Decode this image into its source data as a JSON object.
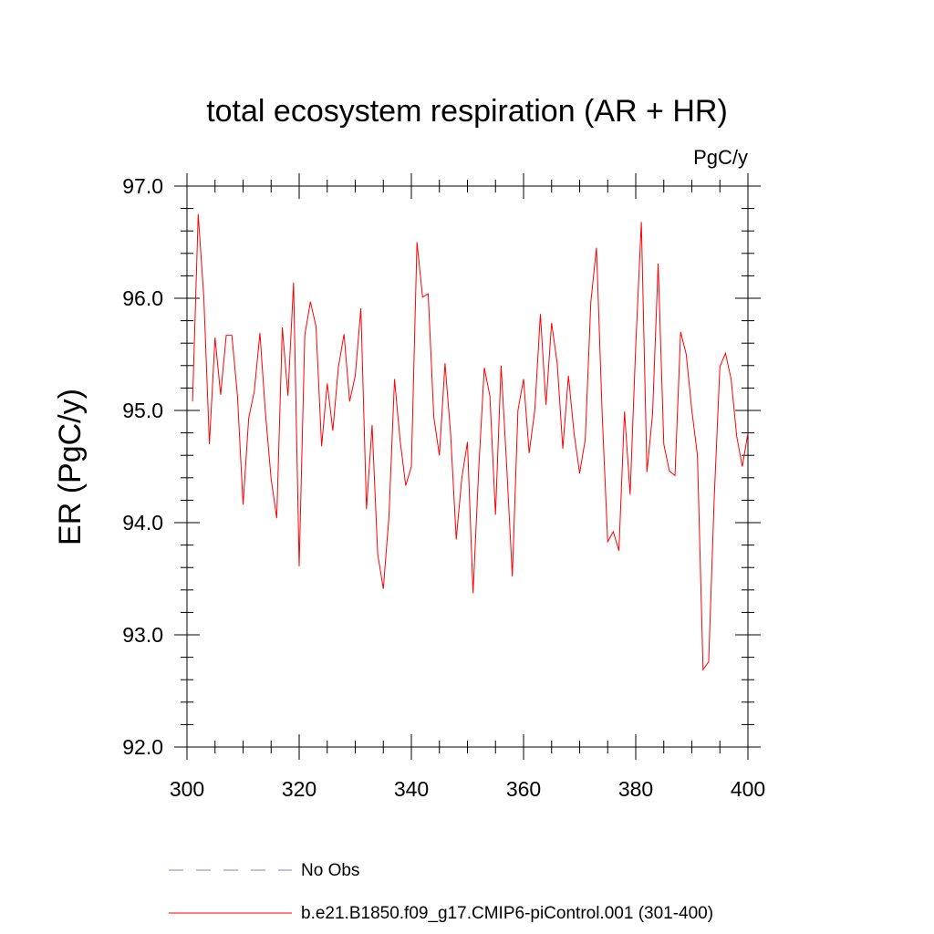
{
  "chart_data": {
    "type": "line",
    "title": "total ecosystem respiration (AR + HR)",
    "units": "PgC/y",
    "xlabel": "",
    "ylabel": "ER  (PgC/y)",
    "xlim": [
      300,
      400
    ],
    "ylim": [
      92.0,
      97.0
    ],
    "x_major_ticks": [
      300,
      320,
      340,
      360,
      380,
      400
    ],
    "x_tick_labels": [
      "300",
      "320",
      "340",
      "360",
      "380",
      "400"
    ],
    "x_minor_step": 5,
    "y_major_ticks": [
      92.0,
      93.0,
      94.0,
      95.0,
      96.0,
      97.0
    ],
    "y_tick_labels": [
      "92.0",
      "93.0",
      "94.0",
      "95.0",
      "96.0",
      "97.0"
    ],
    "y_minor_step": 0.2,
    "grid": false,
    "legend_position": "bottom",
    "series": [
      {
        "name": "No Obs",
        "color": "#8a80c8",
        "dash": "dashed",
        "x": [],
        "values": []
      },
      {
        "name": "b.e21.B1850.f09_g17.CMIP6-piControl.001 (301-400)",
        "color": "#ff0000",
        "dash": "solid",
        "x": [
          301,
          302,
          303,
          304,
          305,
          306,
          307,
          308,
          309,
          310,
          311,
          312,
          313,
          314,
          315,
          316,
          317,
          318,
          319,
          320,
          321,
          322,
          323,
          324,
          325,
          326,
          327,
          328,
          329,
          330,
          331,
          332,
          333,
          334,
          335,
          336,
          337,
          338,
          339,
          340,
          341,
          342,
          343,
          344,
          345,
          346,
          347,
          348,
          349,
          350,
          351,
          352,
          353,
          354,
          355,
          356,
          357,
          358,
          359,
          360,
          361,
          362,
          363,
          364,
          365,
          366,
          367,
          368,
          369,
          370,
          371,
          372,
          373,
          374,
          375,
          376,
          377,
          378,
          379,
          380,
          381,
          382,
          383,
          384,
          385,
          386,
          387,
          388,
          389,
          390,
          391,
          392,
          393,
          394,
          395,
          396,
          397,
          398,
          399,
          400
        ],
        "values": [
          95.08,
          96.75,
          96.01,
          94.7,
          95.65,
          95.14,
          95.67,
          95.67,
          95.13,
          94.16,
          94.93,
          95.17,
          95.69,
          94.97,
          94.39,
          94.04,
          95.74,
          95.13,
          96.14,
          93.61,
          95.67,
          95.97,
          95.75,
          94.68,
          95.24,
          94.82,
          95.39,
          95.68,
          95.08,
          95.31,
          95.91,
          94.12,
          94.87,
          93.72,
          93.41,
          94.05,
          95.28,
          94.73,
          94.33,
          94.5,
          96.5,
          96.01,
          96.04,
          94.94,
          94.6,
          95.42,
          94.79,
          93.85,
          94.4,
          94.72,
          93.37,
          94.47,
          95.38,
          95.13,
          94.07,
          95.4,
          94.5,
          93.52,
          95.0,
          95.28,
          94.62,
          95.0,
          95.86,
          95.05,
          95.78,
          95.42,
          94.66,
          95.31,
          94.8,
          94.44,
          94.74,
          95.97,
          96.45,
          94.99,
          93.83,
          93.92,
          93.75,
          94.99,
          94.25,
          95.58,
          96.68,
          94.45,
          94.97,
          96.31,
          94.7,
          94.46,
          94.42,
          95.7,
          95.5,
          95.0,
          94.6,
          92.69,
          92.76,
          94.23,
          95.39,
          95.51,
          95.28,
          94.77,
          94.5,
          94.8
        ]
      }
    ]
  }
}
